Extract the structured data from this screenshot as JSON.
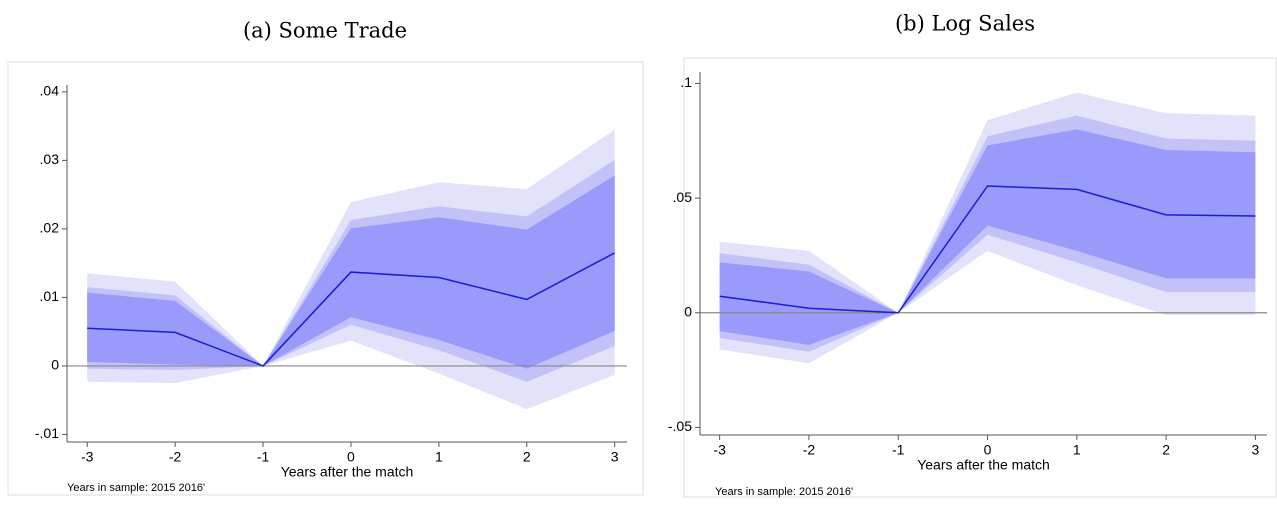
{
  "chart_data": [
    {
      "type": "line",
      "title": "(a) Some Trade",
      "x_label": "Years after the match",
      "note": "Years in sample: 2015 2016'",
      "x": [
        -3,
        -2,
        -1,
        0,
        1,
        2,
        3
      ],
      "values": [
        0.0055,
        0.0049,
        0,
        0.0137,
        0.0129,
        0.0097,
        0.0165
      ],
      "color": "#1c1cd4",
      "bands": [
        {
          "color": "#e2e2fb",
          "lower": [
            -0.0023,
            -0.0025,
            0,
            0.0037,
            -0.0011,
            -0.0063,
            -0.0013
          ],
          "upper": [
            0.0135,
            0.0123,
            0,
            0.0239,
            0.0268,
            0.0258,
            0.0345
          ]
        },
        {
          "color": "#c2c2f8",
          "lower": [
            -0.0004,
            -0.0006,
            0,
            0.006,
            0.0023,
            -0.0023,
            0.0029
          ],
          "upper": [
            0.0115,
            0.0103,
            0,
            0.0213,
            0.0233,
            0.0218,
            0.0301
          ]
        },
        {
          "color": "#9a9afa",
          "lower": [
            0.0006,
            0.0002,
            0,
            0.0071,
            0.0038,
            -0.0004,
            0.0051
          ],
          "upper": [
            0.0107,
            0.0095,
            0,
            0.0201,
            0.0217,
            0.0199,
            0.0278
          ]
        }
      ],
      "hline": 0,
      "xlim": [
        -3.23,
        3.14
      ],
      "xticks": [
        -3,
        -2,
        -1,
        0,
        1,
        2,
        3
      ],
      "ylim": [
        -0.0111,
        0.041
      ],
      "yticks": [
        {
          "value": -0.01,
          "label": "-.01"
        },
        0,
        {
          "value": 0.01,
          "label": ".01"
        },
        {
          "value": 0.02,
          "label": ".02"
        },
        {
          "value": 0.03,
          "label": ".03"
        },
        {
          "value": 0.04,
          "label": ".04"
        }
      ]
    },
    {
      "type": "line",
      "title": "(b) Log Sales",
      "x_label": "Years after the match",
      "note": "Years in sample: 2015 2016'",
      "x": [
        -3,
        -2,
        -1,
        0,
        1,
        2,
        3
      ],
      "values": [
        0.0072,
        0.002,
        0,
        0.0553,
        0.0538,
        0.0427,
        0.0422
      ],
      "color": "#1c1cd4",
      "bands": [
        {
          "color": "#e2e2fb",
          "lower": [
            -0.016,
            -0.022,
            0,
            0.027,
            0.012,
            -0.001,
            -0.001
          ],
          "upper": [
            0.031,
            0.027,
            0,
            0.084,
            0.096,
            0.087,
            0.086
          ]
        },
        {
          "color": "#c2c2f8",
          "lower": [
            -0.011,
            -0.017,
            0,
            0.034,
            0.022,
            0.009,
            0.009
          ],
          "upper": [
            0.026,
            0.021,
            0,
            0.077,
            0.086,
            0.076,
            0.075
          ]
        },
        {
          "color": "#9a9afa",
          "lower": [
            -0.008,
            -0.014,
            0,
            0.038,
            0.027,
            0.015,
            0.015
          ],
          "upper": [
            0.022,
            0.018,
            0,
            0.073,
            0.08,
            0.071,
            0.07
          ]
        }
      ],
      "hline": 0,
      "xlim": [
        -3.22,
        3.13
      ],
      "xticks": [
        -3,
        -2,
        -1,
        0,
        1,
        2,
        3
      ],
      "ylim": [
        -0.0533,
        0.105
      ],
      "yticks": [
        {
          "value": -0.05,
          "label": "-.05"
        },
        0,
        {
          "value": 0.05,
          "label": ".05"
        },
        {
          "value": 0.1,
          "label": ".1"
        }
      ]
    }
  ]
}
